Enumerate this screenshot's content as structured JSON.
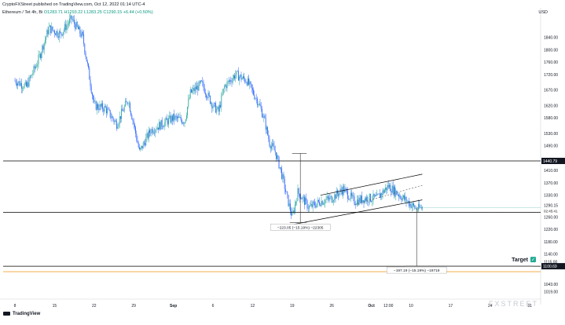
{
  "header": {
    "publish_line": "CryptoFXStreet published on TradingView.com, Oct 12, 2022 01:14 UTC-4",
    "symbol_prefix": "Ethereum / Tet",
    "symbol_middle": "4h, Bi",
    "ohlc_text": "O1283.71  H1293.22  L1283.25  C1290.15  +6.44 (+0.50%)",
    "currency": "USD"
  },
  "colors": {
    "up": "#26a69a",
    "down": "#2962ff",
    "hline": "#000000",
    "orange_line": "#f0a030",
    "target_check": "#22ab94"
  },
  "chart_data": {
    "type": "candlestick",
    "title": "",
    "xlabel": "",
    "ylabel": "",
    "ylim": [
      997,
      1915
    ],
    "y_ticks": [
      1840.0,
      1800.0,
      1760.0,
      1720.0,
      1670.0,
      1620.0,
      1580.0,
      1530.0,
      1490.0,
      1410.0,
      1370.0,
      1330.0,
      1260.0,
      1220.0,
      1180.0,
      1140.0,
      1115.0,
      1097.0,
      1043.0,
      1019.0
    ],
    "x_ticks": [
      "8",
      "15",
      "22",
      "29",
      "Sep",
      "6",
      "12",
      "19",
      "26",
      "Oct",
      "12:00",
      "10",
      "17",
      "24",
      "31"
    ],
    "x_tick_index": [
      0,
      7,
      14,
      21,
      28,
      35,
      42,
      49,
      56,
      63,
      66,
      70,
      77,
      84,
      91
    ],
    "price_path": [
      [
        0,
        1700
      ],
      [
        2,
        1680
      ],
      [
        4,
        1760
      ],
      [
        6,
        1870
      ],
      [
        8,
        1850
      ],
      [
        10,
        1900
      ],
      [
        12,
        1840
      ],
      [
        14,
        1620
      ],
      [
        16,
        1610
      ],
      [
        18,
        1560
      ],
      [
        20,
        1640
      ],
      [
        21,
        1560
      ],
      [
        22,
        1470
      ],
      [
        24,
        1540
      ],
      [
        26,
        1560
      ],
      [
        28,
        1580
      ],
      [
        30,
        1570
      ],
      [
        31,
        1660
      ],
      [
        33,
        1690
      ],
      [
        35,
        1620
      ],
      [
        36,
        1600
      ],
      [
        37,
        1680
      ],
      [
        39,
        1720
      ],
      [
        41,
        1700
      ],
      [
        43,
        1630
      ],
      [
        44,
        1580
      ],
      [
        45,
        1500
      ],
      [
        46,
        1470
      ],
      [
        47,
        1410
      ],
      [
        48,
        1330
      ],
      [
        49,
        1260
      ],
      [
        50,
        1340
      ],
      [
        52,
        1290
      ],
      [
        54,
        1310
      ],
      [
        56,
        1320
      ],
      [
        58,
        1350
      ],
      [
        60,
        1310
      ],
      [
        62,
        1320
      ],
      [
        64,
        1320
      ],
      [
        66,
        1360
      ],
      [
        68,
        1330
      ],
      [
        70,
        1300
      ],
      [
        71,
        1285
      ],
      [
        72,
        1290
      ]
    ],
    "last_price": 1290.15,
    "last_price_time": "02:45:41",
    "horizontal_lines": [
      {
        "price": 1440.79,
        "label": "1440.79"
      },
      {
        "price": 1275.0,
        "label": ""
      },
      {
        "price": 1100.69,
        "label": "1100.69"
      }
    ],
    "target_level": 1083.0,
    "channel": {
      "lower": {
        "from": [
          49,
          1235
        ],
        "to": [
          72,
          1315
        ]
      },
      "upper": {
        "from": [
          54,
          1330
        ],
        "to": [
          72,
          1398
        ]
      },
      "mid": {
        "from": [
          60,
          1300
        ],
        "to": [
          72,
          1362
        ]
      }
    },
    "measure_1": {
      "from_index": 49,
      "to_index": 51,
      "from_price": 1465,
      "to_price": 1242,
      "label": "−223.05 (−15.19%)  −22305"
    },
    "measure_2": {
      "from_index": 71,
      "from_price": 1290,
      "to_price": 1100.69,
      "label": "−197.19 (−15.19%)  −19719"
    },
    "target_label": "Target"
  },
  "footer": {
    "logo_text": "TradingView",
    "watermark": "FXSTREET"
  }
}
